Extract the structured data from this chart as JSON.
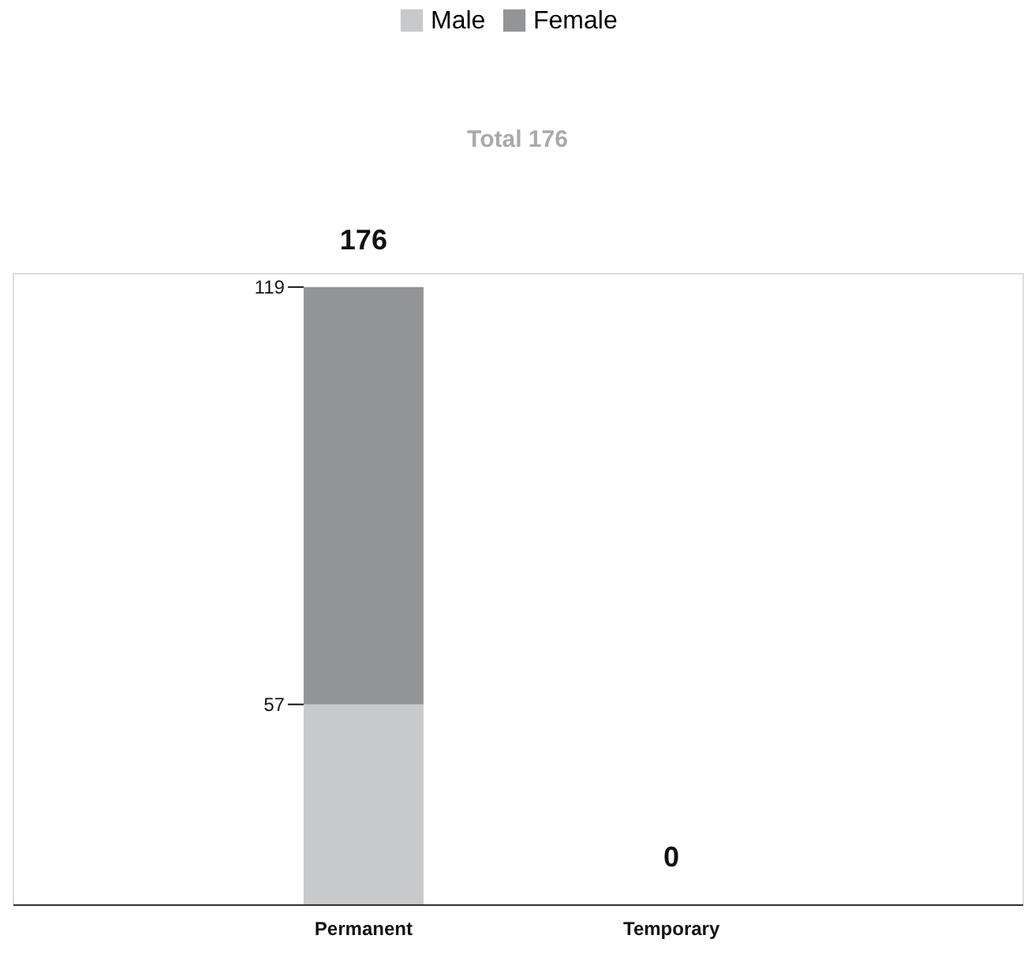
{
  "chart_data": {
    "type": "bar",
    "stacked": true,
    "categories": [
      "Permanent",
      "Temporary"
    ],
    "series": [
      {
        "name": "Male",
        "color": "#c8c9cb",
        "values": [
          57,
          0
        ],
        "value_labels": [
          "57",
          null
        ]
      },
      {
        "name": "Female",
        "color": "#939496",
        "values": [
          119,
          0
        ],
        "value_labels": [
          "119",
          null
        ]
      }
    ],
    "totals": [
      "176",
      "0"
    ],
    "annotations": [
      "Total 176"
    ],
    "legend": "top",
    "grid": false
  }
}
